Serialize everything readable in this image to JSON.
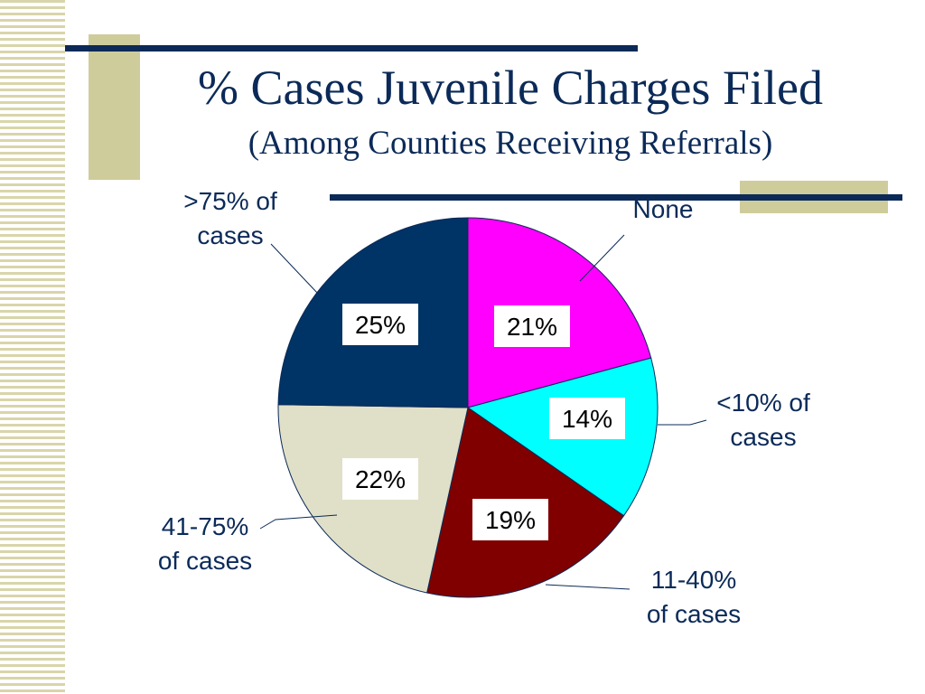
{
  "slide": {
    "title": "% Cases Juvenile Charges Filed",
    "subtitle": "(Among Counties Receiving Referrals)"
  },
  "colors": {
    "title": "#0b2a58",
    "accent_navy": "#0b2a58",
    "accent_tan": "#cfcc9b"
  },
  "chart_data": {
    "type": "pie",
    "title": "% Cases Juvenile Charges Filed",
    "subtitle": "(Among Counties Receiving Referrals)",
    "slices": [
      {
        "category": "None",
        "value": 21,
        "value_label": "21%",
        "color": "#ff00ff"
      },
      {
        "category": "<10% of cases",
        "value": 14,
        "value_label": "14%",
        "color": "#00ffff"
      },
      {
        "category": "11-40% of cases",
        "value": 19,
        "value_label": "19%",
        "color": "#800000"
      },
      {
        "category": "41-75% of cases",
        "value": 22,
        "value_label": "22%",
        "color": "#e0dfc8"
      },
      {
        "category": ">75% of cases",
        "value": 25,
        "value_label": "25%",
        "color": "#003366"
      }
    ],
    "label_lines": [
      [
        "None"
      ],
      [
        "<10% of",
        "cases"
      ],
      [
        "11-40%",
        "of cases"
      ],
      [
        "41-75%",
        "of cases"
      ],
      [
        ">75% of",
        "cases"
      ]
    ],
    "start_angle_deg": 0,
    "direction": "clockwise",
    "legend": "none"
  }
}
